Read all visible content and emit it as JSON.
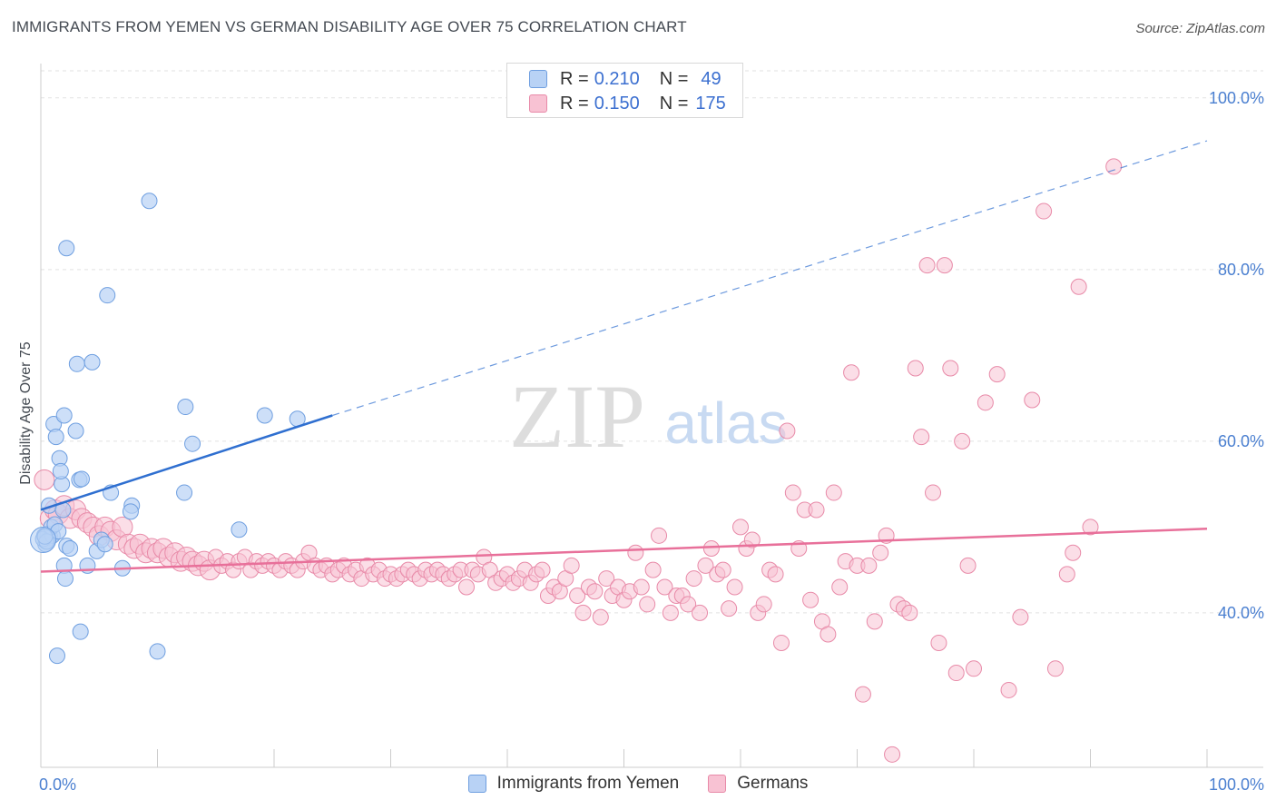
{
  "title": "IMMIGRANTS FROM YEMEN VS GERMAN DISABILITY AGE OVER 75 CORRELATION CHART",
  "source": "Source: ZipAtlas.com",
  "watermark": {
    "zip": "ZIP",
    "atlas": "atlas"
  },
  "legend": {
    "rows": [
      {
        "r_label": "R =",
        "r_value": "0.210",
        "n_label": "N =",
        "n_value": "49"
      },
      {
        "r_label": "R =",
        "r_value": "0.150",
        "n_label": "N =",
        "n_value": "175"
      }
    ]
  },
  "colors": {
    "yemen_fill": "#b8d2f5",
    "yemen_stroke": "#6f9fe0",
    "yemen_line": "#2f6fd0",
    "german_fill": "#f8c2d3",
    "german_stroke": "#e88aa8",
    "german_line": "#e8709a",
    "tick_label": "#4a7fd0"
  },
  "chart_data": {
    "type": "scatter",
    "title": "IMMIGRANTS FROM YEMEN VS GERMAN DISABILITY AGE OVER 75 CORRELATION CHART",
    "xlabel": "",
    "ylabel": "Disability Age Over 75",
    "xlim": [
      0,
      100
    ],
    "ylim": [
      22,
      104
    ],
    "x_tick_labels": [
      "0.0%",
      "100.0%"
    ],
    "y_ticks": [
      {
        "value": 40,
        "label": "40.0%"
      },
      {
        "value": 60,
        "label": "60.0%"
      },
      {
        "value": 80,
        "label": "80.0%"
      },
      {
        "value": 100,
        "label": "100.0%"
      }
    ],
    "grid": "horizontal dashed",
    "legend_position": "bottom",
    "series": [
      {
        "name": "Immigrants from Yemen",
        "r": 0.21,
        "n": 49,
        "trend": {
          "x": [
            0,
            25
          ],
          "y": [
            52,
            63
          ],
          "dashed_to": [
            100,
            95
          ]
        },
        "points": [
          [
            0.3,
            49
          ],
          [
            0.5,
            48.5
          ],
          [
            0.6,
            49.2
          ],
          [
            0.8,
            48.8
          ],
          [
            0.4,
            48
          ],
          [
            0.2,
            48.6
          ],
          [
            1.0,
            49
          ],
          [
            0.9,
            50
          ],
          [
            0.7,
            52.5
          ],
          [
            1.2,
            50.3
          ],
          [
            1.5,
            49.5
          ],
          [
            1.6,
            58
          ],
          [
            1.8,
            55
          ],
          [
            1.1,
            62
          ],
          [
            1.3,
            60.5
          ],
          [
            2.0,
            63
          ],
          [
            2.2,
            47.8
          ],
          [
            2.5,
            47.5
          ],
          [
            2.0,
            45.5
          ],
          [
            2.1,
            44
          ],
          [
            1.9,
            52
          ],
          [
            1.7,
            56.5
          ],
          [
            3.0,
            61.2
          ],
          [
            3.3,
            55.5
          ],
          [
            3.5,
            55.6
          ],
          [
            3.1,
            69
          ],
          [
            4.4,
            69.2
          ],
          [
            2.2,
            82.5
          ],
          [
            5.7,
            77
          ],
          [
            9.3,
            88
          ],
          [
            1.4,
            35
          ],
          [
            3.4,
            37.8
          ],
          [
            4.0,
            45.5
          ],
          [
            4.8,
            47.2
          ],
          [
            5.2,
            48.5
          ],
          [
            6.0,
            54
          ],
          [
            5.5,
            48
          ],
          [
            7.0,
            45.2
          ],
          [
            7.8,
            52.5
          ],
          [
            7.7,
            51.8
          ],
          [
            10.0,
            35.5
          ],
          [
            12.4,
            64
          ],
          [
            12.3,
            54
          ],
          [
            13.0,
            59.7
          ],
          [
            17.0,
            49.7
          ],
          [
            19.2,
            63
          ],
          [
            22.0,
            62.6
          ],
          [
            0.5,
            48.3
          ],
          [
            0.35,
            48.9
          ]
        ]
      },
      {
        "name": "Germans",
        "r": 0.15,
        "n": 175,
        "trend": {
          "x": [
            0,
            100
          ],
          "y": [
            44.8,
            49.8
          ]
        },
        "points": [
          [
            0.3,
            55.5
          ],
          [
            0.8,
            51
          ],
          [
            1.2,
            52
          ],
          [
            1.5,
            51.5
          ],
          [
            2.0,
            52.5
          ],
          [
            2.5,
            51
          ],
          [
            3.0,
            52
          ],
          [
            3.5,
            51
          ],
          [
            4.0,
            50.5
          ],
          [
            4.5,
            50
          ],
          [
            5.0,
            49
          ],
          [
            5.5,
            50
          ],
          [
            6.0,
            49.5
          ],
          [
            6.5,
            48.5
          ],
          [
            7.0,
            50
          ],
          [
            7.5,
            48
          ],
          [
            8.0,
            47.5
          ],
          [
            8.5,
            48
          ],
          [
            9.0,
            47
          ],
          [
            9.5,
            47.5
          ],
          [
            10.0,
            47
          ],
          [
            10.5,
            47.5
          ],
          [
            11.0,
            46.5
          ],
          [
            11.5,
            47
          ],
          [
            12.0,
            46
          ],
          [
            12.5,
            46.5
          ],
          [
            13.0,
            46
          ],
          [
            13.5,
            45.5
          ],
          [
            14.0,
            46
          ],
          [
            14.5,
            45
          ],
          [
            15.0,
            46.5
          ],
          [
            15.5,
            45.5
          ],
          [
            16.0,
            46
          ],
          [
            16.5,
            45
          ],
          [
            17.0,
            46
          ],
          [
            17.5,
            46.5
          ],
          [
            18.0,
            45
          ],
          [
            18.5,
            46
          ],
          [
            19.0,
            45.5
          ],
          [
            19.5,
            46
          ],
          [
            20.0,
            45.5
          ],
          [
            20.5,
            45
          ],
          [
            21.0,
            46
          ],
          [
            21.5,
            45.5
          ],
          [
            22.0,
            45
          ],
          [
            22.5,
            46
          ],
          [
            23.0,
            47
          ],
          [
            23.5,
            45.5
          ],
          [
            24.0,
            45
          ],
          [
            24.5,
            45.5
          ],
          [
            25.0,
            44.5
          ],
          [
            25.5,
            45
          ],
          [
            26.0,
            45.5
          ],
          [
            26.5,
            44.5
          ],
          [
            27.0,
            45
          ],
          [
            27.5,
            44
          ],
          [
            28.0,
            45.5
          ],
          [
            28.5,
            44.5
          ],
          [
            29.0,
            45
          ],
          [
            29.5,
            44
          ],
          [
            30.0,
            44.5
          ],
          [
            30.5,
            44
          ],
          [
            31.0,
            44.5
          ],
          [
            31.5,
            45
          ],
          [
            32.0,
            44.5
          ],
          [
            32.5,
            44
          ],
          [
            33.0,
            45
          ],
          [
            33.5,
            44.5
          ],
          [
            34.0,
            45
          ],
          [
            34.5,
            44.5
          ],
          [
            35.0,
            44
          ],
          [
            35.5,
            44.5
          ],
          [
            36.0,
            45
          ],
          [
            36.5,
            43
          ],
          [
            37.0,
            45
          ],
          [
            37.5,
            44.5
          ],
          [
            38.0,
            46.5
          ],
          [
            38.5,
            45
          ],
          [
            39.0,
            43.5
          ],
          [
            39.5,
            44
          ],
          [
            40.0,
            44.5
          ],
          [
            40.5,
            43.5
          ],
          [
            41.0,
            44
          ],
          [
            41.5,
            45
          ],
          [
            42.0,
            43.5
          ],
          [
            42.5,
            44.5
          ],
          [
            43.0,
            45
          ],
          [
            43.5,
            42
          ],
          [
            44.0,
            43
          ],
          [
            44.5,
            42.5
          ],
          [
            45.0,
            44
          ],
          [
            45.5,
            45.5
          ],
          [
            46.0,
            42
          ],
          [
            46.5,
            40
          ],
          [
            47.0,
            43
          ],
          [
            47.5,
            42.5
          ],
          [
            48.0,
            39.5
          ],
          [
            48.5,
            44
          ],
          [
            49.0,
            42
          ],
          [
            49.5,
            43
          ],
          [
            50.0,
            41.5
          ],
          [
            50.5,
            42.5
          ],
          [
            51.0,
            47
          ],
          [
            51.5,
            43
          ],
          [
            52.0,
            41
          ],
          [
            52.5,
            45
          ],
          [
            53.0,
            49
          ],
          [
            53.5,
            43
          ],
          [
            54.0,
            40
          ],
          [
            54.5,
            42
          ],
          [
            55.0,
            42
          ],
          [
            55.5,
            41
          ],
          [
            56.0,
            44
          ],
          [
            56.5,
            40
          ],
          [
            57.0,
            45.5
          ],
          [
            57.5,
            47.5
          ],
          [
            58.0,
            44.5
          ],
          [
            58.5,
            45
          ],
          [
            59.0,
            40.5
          ],
          [
            59.5,
            43
          ],
          [
            60.0,
            50
          ],
          [
            60.5,
            47.5
          ],
          [
            61.0,
            48.5
          ],
          [
            61.5,
            40
          ],
          [
            62.0,
            41
          ],
          [
            62.5,
            45
          ],
          [
            63.0,
            44.5
          ],
          [
            63.5,
            36.5
          ],
          [
            64.0,
            61.2
          ],
          [
            64.5,
            54
          ],
          [
            65.0,
            47.5
          ],
          [
            65.5,
            52
          ],
          [
            66.0,
            41.5
          ],
          [
            66.5,
            52
          ],
          [
            67.0,
            39
          ],
          [
            67.5,
            37.5
          ],
          [
            68.0,
            54
          ],
          [
            68.5,
            43
          ],
          [
            69.0,
            46
          ],
          [
            69.5,
            68
          ],
          [
            70.0,
            45.5
          ],
          [
            70.5,
            30.5
          ],
          [
            71.0,
            45.5
          ],
          [
            71.5,
            39
          ],
          [
            72.0,
            47
          ],
          [
            72.5,
            49
          ],
          [
            73.0,
            23.5
          ],
          [
            73.5,
            41
          ],
          [
            74.0,
            40.5
          ],
          [
            74.5,
            40
          ],
          [
            75.0,
            68.5
          ],
          [
            75.5,
            60.5
          ],
          [
            76.0,
            80.5
          ],
          [
            76.5,
            54
          ],
          [
            77.0,
            36.5
          ],
          [
            77.5,
            80.5
          ],
          [
            78.0,
            68.5
          ],
          [
            78.5,
            33
          ],
          [
            79.0,
            60
          ],
          [
            79.5,
            45.5
          ],
          [
            80.0,
            33.5
          ],
          [
            81.0,
            64.5
          ],
          [
            82.0,
            67.8
          ],
          [
            83.0,
            31
          ],
          [
            84.0,
            39.5
          ],
          [
            85.0,
            64.8
          ],
          [
            86.0,
            86.8
          ],
          [
            87.0,
            33.5
          ],
          [
            88.0,
            44.5
          ],
          [
            88.5,
            47
          ],
          [
            89.0,
            78
          ],
          [
            90.0,
            50
          ],
          [
            92.0,
            92
          ]
        ]
      }
    ]
  },
  "bottom_legend": [
    "Immigrants from Yemen",
    "Germans"
  ]
}
